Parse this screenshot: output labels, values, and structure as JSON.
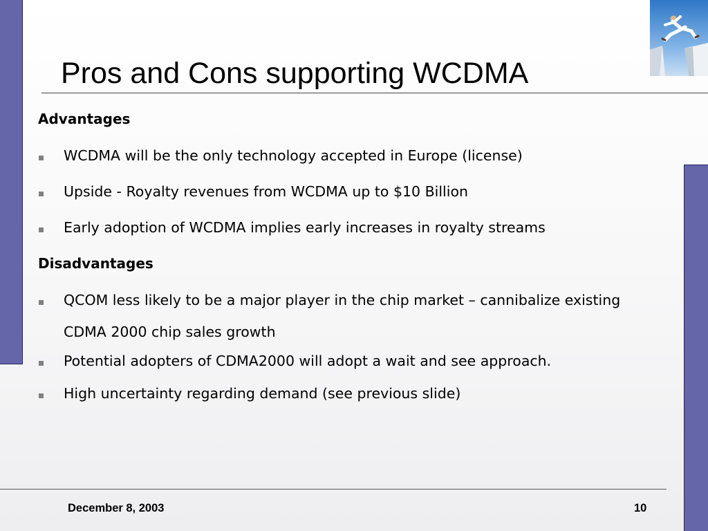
{
  "slide": {
    "title": "Pros and Cons supporting WCDMA"
  },
  "advantages": {
    "heading": "Advantages",
    "items": [
      "WCDMA will be the only technology accepted in Europe (license)",
      "Upside - Royalty revenues from WCDMA up to $10 Billion",
      "Early adoption of WCDMA implies early increases in royalty streams"
    ]
  },
  "disadvantages": {
    "heading": "Disadvantages",
    "items": [
      {
        "line1": "QCOM less likely to be a major player in the chip market – cannibalize existing",
        "line2": "CDMA 2000 chip sales growth"
      },
      "Potential adopters of CDMA2000 will adopt a wait and see approach.",
      "High uncertainty regarding demand (see previous slide)"
    ]
  },
  "footer": {
    "date": "December 8, 2003",
    "page_number": "10"
  },
  "decor": {
    "bar_color": "#6565a9",
    "bar_border_color": "#262660",
    "bullet_color": "#808080",
    "photo": "jumping-man-photo"
  }
}
